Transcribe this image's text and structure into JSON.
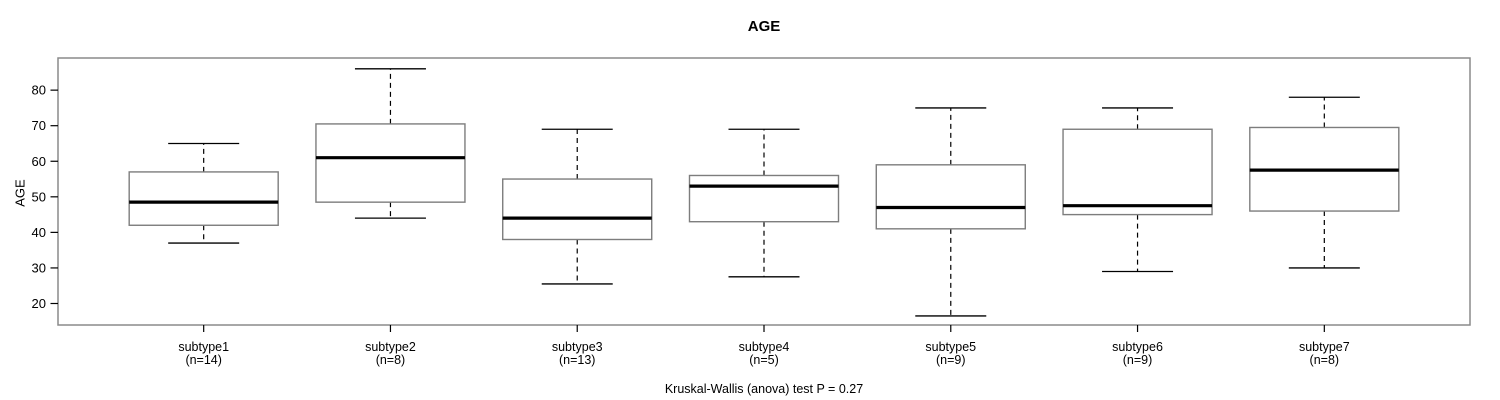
{
  "figure": {
    "title": "AGE",
    "y_axis_label": "AGE",
    "caption": "Kruskal-Wallis (anova) test P = 0.27"
  },
  "chart_data": {
    "type": "boxplot",
    "title": "AGE",
    "xlabel": "",
    "ylabel": "AGE",
    "caption": "Kruskal-Wallis (anova) test P = 0.27",
    "grid": false,
    "legend": "none",
    "y_ticks": [
      20,
      30,
      40,
      50,
      60,
      70,
      80
    ],
    "ylim": [
      13.5,
      89
    ],
    "categories": [
      "subtype1",
      "subtype2",
      "subtype3",
      "subtype4",
      "subtype5",
      "subtype6",
      "subtype7"
    ],
    "sample_sizes": [
      14,
      8,
      13,
      5,
      9,
      9,
      8
    ],
    "groups": [
      {
        "label": "subtype1",
        "n_label": "(n=14)",
        "n": 14,
        "whisker_low": 37,
        "q1": 42,
        "median": 48.5,
        "q3": 57,
        "whisker_high": 65
      },
      {
        "label": "subtype2",
        "n_label": "(n=8)",
        "n": 8,
        "whisker_low": 44,
        "q1": 48.5,
        "median": 61,
        "q3": 70.5,
        "whisker_high": 86
      },
      {
        "label": "subtype3",
        "n_label": "(n=13)",
        "n": 13,
        "whisker_low": 25.5,
        "q1": 38,
        "median": 44,
        "q3": 55,
        "whisker_high": 69
      },
      {
        "label": "subtype4",
        "n_label": "(n=5)",
        "n": 5,
        "whisker_low": 27.5,
        "q1": 43,
        "median": 53,
        "q3": 56,
        "whisker_high": 69
      },
      {
        "label": "subtype5",
        "n_label": "(n=9)",
        "n": 9,
        "whisker_low": 16.5,
        "q1": 41,
        "median": 47,
        "q3": 59,
        "whisker_high": 75
      },
      {
        "label": "subtype6",
        "n_label": "(n=9)",
        "n": 9,
        "whisker_low": 29,
        "q1": 45,
        "median": 47.5,
        "q3": 69,
        "whisker_high": 75
      },
      {
        "label": "subtype7",
        "n_label": "(n=8)",
        "n": 8,
        "whisker_low": 30,
        "q1": 46,
        "median": 57.5,
        "q3": 69.5,
        "whisker_high": 78
      }
    ],
    "colors": {
      "background": "#ffffff",
      "frame": "#8a8a8a",
      "box_border": "#7d7d7d",
      "box_fill": "#ffffff",
      "median": "#000000",
      "whisker": "#000000",
      "tick": "#000000",
      "text": "#000000"
    }
  }
}
